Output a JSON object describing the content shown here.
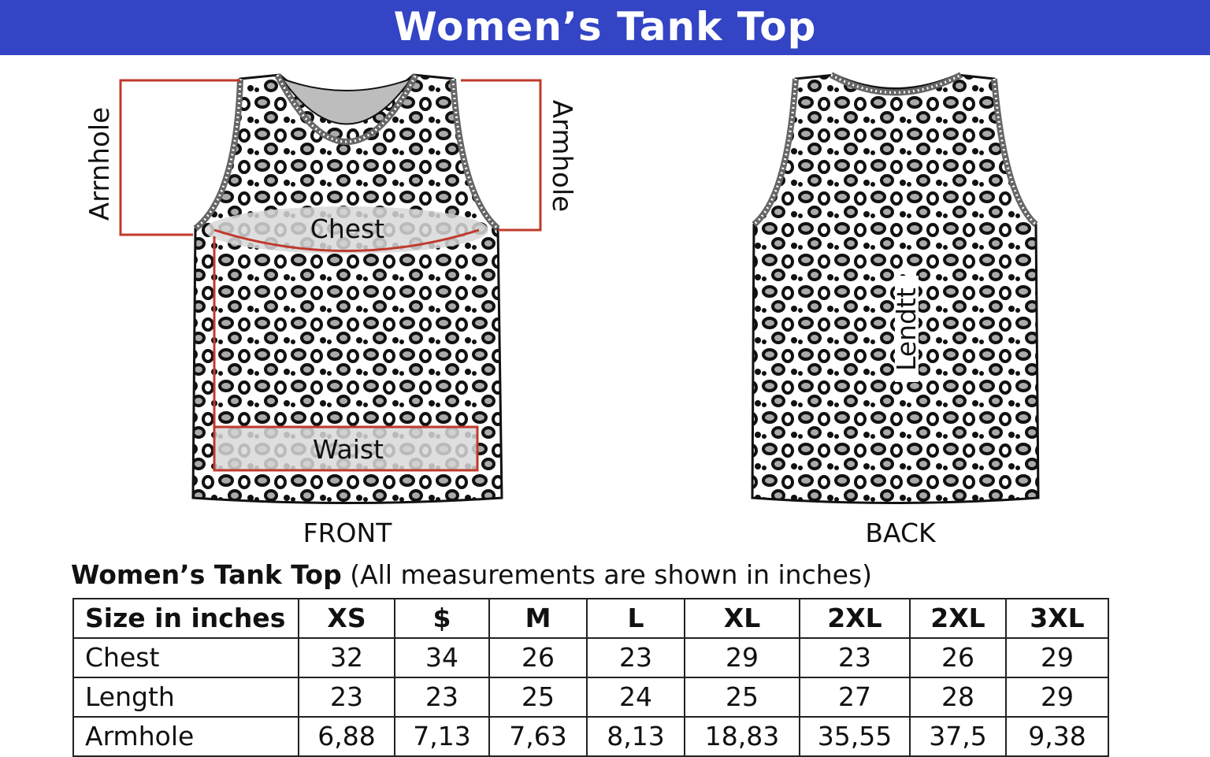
{
  "banner": {
    "title": "Women’s Tank Top"
  },
  "front": {
    "view_label": "FRONT",
    "labels": {
      "armhole_left": "Arrnhole",
      "armhole_right": "Armhole",
      "chest": "Chest",
      "waist": "Waist"
    }
  },
  "back": {
    "view_label": "BACK",
    "labels": {
      "length": "Lendtt"
    }
  },
  "colors": {
    "banner": "#3344c4",
    "measure_line": "#c0392b",
    "pattern_spot": "#111111",
    "pattern_fill": "#aaaaaa",
    "band_highlight": "#d8d8d8"
  },
  "table": {
    "title_bold": "Women’s Tank Top",
    "title_rest": "(All measurements are shown in inches)",
    "header_label": "Size in inches",
    "sizes": [
      "XS",
      "$",
      "M",
      "L",
      "XL",
      "2XL",
      "2XL",
      "3XL"
    ],
    "rows": [
      {
        "label": "Chest",
        "values": [
          "32",
          "34",
          "26",
          "23",
          "29",
          "23",
          "26",
          "29"
        ]
      },
      {
        "label": "Length",
        "values": [
          "23",
          "23",
          "25",
          "24",
          "25",
          "27",
          "28",
          "29"
        ]
      },
      {
        "label": "Armhole",
        "values": [
          "6,88",
          "7,13",
          "7,63",
          "8,13",
          "18,83",
          "35,55",
          "37,5",
          "9,38"
        ]
      }
    ]
  }
}
